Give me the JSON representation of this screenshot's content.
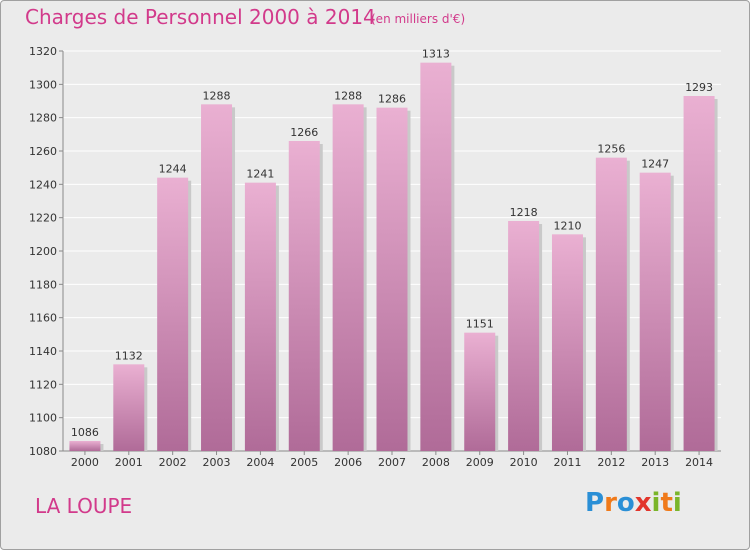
{
  "chart_data": {
    "type": "bar",
    "title": "Charges de Personnel 2000 à 2014",
    "subtitle": "(en milliers d'€)",
    "categories": [
      "2000",
      "2001",
      "2002",
      "2003",
      "2004",
      "2005",
      "2006",
      "2007",
      "2008",
      "2009",
      "2010",
      "2011",
      "2012",
      "2013",
      "2014"
    ],
    "values": [
      1086,
      1132,
      1244,
      1288,
      1241,
      1266,
      1288,
      1286,
      1313,
      1151,
      1218,
      1210,
      1256,
      1247,
      1293
    ],
    "ylim": [
      1080,
      1320
    ],
    "yticks": [
      1080,
      1100,
      1120,
      1140,
      1160,
      1180,
      1200,
      1220,
      1240,
      1260,
      1280,
      1300,
      1320
    ],
    "grid": true,
    "colors": {
      "bar_top": "#eab0d2",
      "bar_bottom": "#b06b98",
      "text": "#d23a8b",
      "grid": "#ffffff"
    }
  },
  "footer": {
    "city": "LA LOUPE",
    "logo": [
      "P",
      "r",
      "o",
      "x",
      "i",
      "t",
      "i"
    ],
    "logo_colors": [
      "#2a8fd6",
      "#f07a1a",
      "#2a8fd6",
      "#e2352b",
      "#7ab52a",
      "#f07a1a",
      "#7ab52a"
    ]
  }
}
